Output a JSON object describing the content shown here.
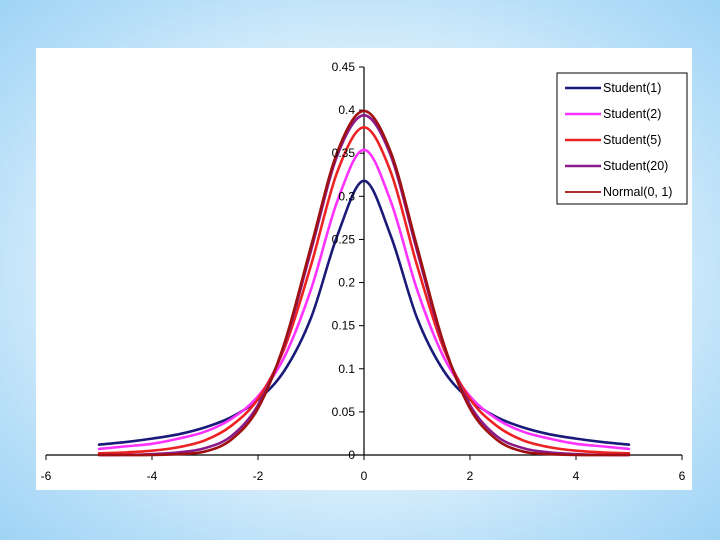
{
  "chart_data": {
    "type": "line",
    "title": "",
    "xlabel": "",
    "ylabel": "",
    "xlim": [
      -6,
      6
    ],
    "ylim": [
      0,
      0.45
    ],
    "xticks": [
      "-6",
      "-4",
      "-2",
      "0",
      "2",
      "4",
      "6"
    ],
    "yticks": [
      "0",
      "0.05",
      "0.1",
      "0.15",
      "0.2",
      "0.25",
      "0.3",
      "0.35",
      "0.4",
      "0.45"
    ],
    "grid": false,
    "legend_position": "top-right",
    "x": [
      -5,
      -4.5,
      -4,
      -3.5,
      -3,
      -2.5,
      -2,
      -1.5,
      -1,
      -0.5,
      0,
      0.5,
      1,
      1.5,
      2,
      2.5,
      3,
      3.5,
      4,
      4.5,
      5
    ],
    "series": [
      {
        "name": "Student(1)",
        "color": "#1a1a7a",
        "values": [
          0.012,
          0.015,
          0.019,
          0.024,
          0.032,
          0.044,
          0.064,
          0.098,
          0.159,
          0.255,
          0.318,
          0.255,
          0.159,
          0.098,
          0.064,
          0.044,
          0.032,
          0.024,
          0.019,
          0.015,
          0.012
        ]
      },
      {
        "name": "Student(2)",
        "color": "#ff33ff",
        "values": [
          0.007,
          0.01,
          0.013,
          0.019,
          0.027,
          0.042,
          0.068,
          0.114,
          0.192,
          0.295,
          0.354,
          0.295,
          0.192,
          0.114,
          0.068,
          0.042,
          0.027,
          0.019,
          0.013,
          0.01,
          0.007
        ]
      },
      {
        "name": "Student(5)",
        "color": "#ee2222",
        "values": [
          0.002,
          0.003,
          0.005,
          0.009,
          0.017,
          0.034,
          0.065,
          0.124,
          0.22,
          0.329,
          0.38,
          0.329,
          0.22,
          0.124,
          0.065,
          0.034,
          0.017,
          0.009,
          0.005,
          0.003,
          0.002
        ]
      },
      {
        "name": "Student(20)",
        "color": "#8b1a8b",
        "values": [
          0.0,
          0.0,
          0.001,
          0.003,
          0.008,
          0.022,
          0.058,
          0.128,
          0.237,
          0.348,
          0.394,
          0.348,
          0.237,
          0.128,
          0.058,
          0.022,
          0.008,
          0.003,
          0.001,
          0.0,
          0.0
        ]
      },
      {
        "name": "Normal(0, 1)",
        "color": "#a01010",
        "values": [
          0.0,
          0.0,
          0.0,
          0.001,
          0.004,
          0.018,
          0.054,
          0.13,
          0.242,
          0.352,
          0.399,
          0.352,
          0.242,
          0.13,
          0.054,
          0.018,
          0.004,
          0.001,
          0.0,
          0.0,
          0.0
        ]
      }
    ]
  }
}
